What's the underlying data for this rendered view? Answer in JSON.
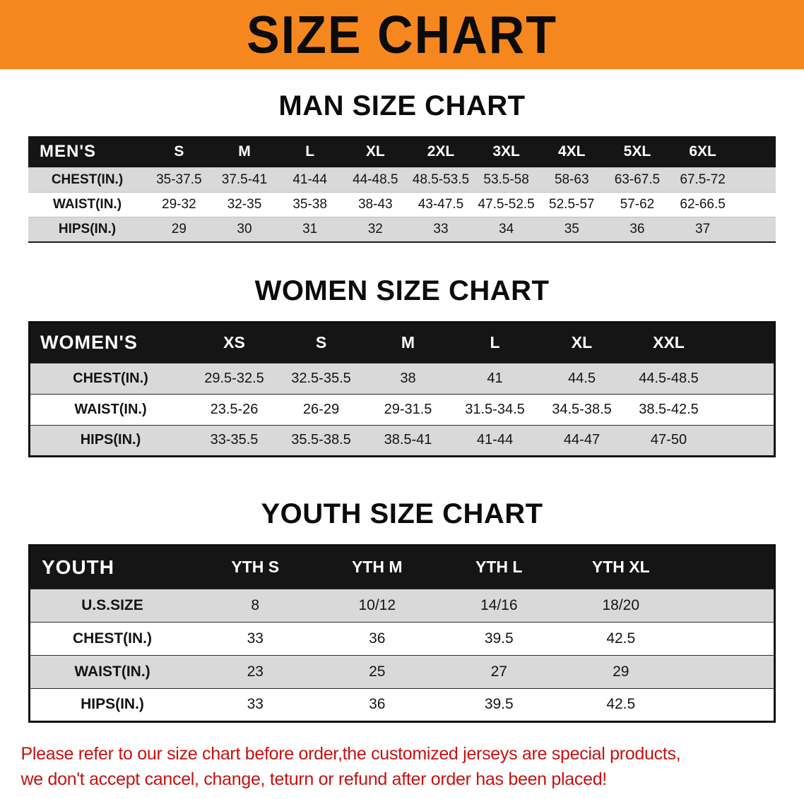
{
  "banner": {
    "title": "SIZE CHART"
  },
  "colors": {
    "banner_orange": "#F6871F",
    "table_header_black": "#151515",
    "stripe_gray": "#D9D9D9",
    "notice_red": "#C81010"
  },
  "sections": [
    {
      "id": "men",
      "heading": "MAN SIZE CHART",
      "table": {
        "label": "MEN'S",
        "columns": [
          "S",
          "M",
          "L",
          "XL",
          "2XL",
          "3XL",
          "4XL",
          "5XL",
          "6XL"
        ],
        "rows": [
          {
            "label": "CHEST(IN.)",
            "values": [
              "35-37.5",
              "37.5-41",
              "41-44",
              "44-48.5",
              "48.5-53.5",
              "53.5-58",
              "58-63",
              "63-67.5",
              "67.5-72"
            ]
          },
          {
            "label": "WAIST(IN.)",
            "values": [
              "29-32",
              "32-35",
              "35-38",
              "38-43",
              "43-47.5",
              "47.5-52.5",
              "52.5-57",
              "57-62",
              "62-66.5"
            ]
          },
          {
            "label": "HIPS(IN.)",
            "values": [
              "29",
              "30",
              "31",
              "32",
              "33",
              "34",
              "35",
              "36",
              "37"
            ]
          }
        ]
      }
    },
    {
      "id": "women",
      "heading": "WOMEN SIZE CHART",
      "table": {
        "label": "WOMEN'S",
        "columns": [
          "XS",
          "S",
          "M",
          "L",
          "XL",
          "XXL"
        ],
        "rows": [
          {
            "label": "CHEST(IN.)",
            "values": [
              "29.5-32.5",
              "32.5-35.5",
              "38",
              "41",
              "44.5",
              "44.5-48.5"
            ]
          },
          {
            "label": "WAIST(IN.)",
            "values": [
              "23.5-26",
              "26-29",
              "29-31.5",
              "31.5-34.5",
              "34.5-38.5",
              "38.5-42.5"
            ]
          },
          {
            "label": "HIPS(IN.)",
            "values": [
              "33-35.5",
              "35.5-38.5",
              "38.5-41",
              "41-44",
              "44-47",
              "47-50"
            ]
          }
        ]
      }
    },
    {
      "id": "youth",
      "heading": "YOUTH SIZE CHART",
      "table": {
        "label": "YOUTH",
        "columns": [
          "YTH S",
          "YTH M",
          "YTH L",
          "YTH XL"
        ],
        "rows": [
          {
            "label": "U.S.SIZE",
            "values": [
              "8",
              "10/12",
              "14/16",
              "18/20"
            ]
          },
          {
            "label": "CHEST(IN.)",
            "values": [
              "33",
              "36",
              "39.5",
              "42.5"
            ]
          },
          {
            "label": "WAIST(IN.)",
            "values": [
              "23",
              "25",
              "27",
              "29"
            ]
          },
          {
            "label": "HIPS(IN.)",
            "values": [
              "33",
              "36",
              "39.5",
              "42.5"
            ]
          }
        ]
      }
    }
  ],
  "footer": {
    "lines": [
      "Please refer to our size chart before order,the customized jerseys are special products,",
      "we don't accept cancel, change, teturn or refund after order has been placed!"
    ]
  }
}
